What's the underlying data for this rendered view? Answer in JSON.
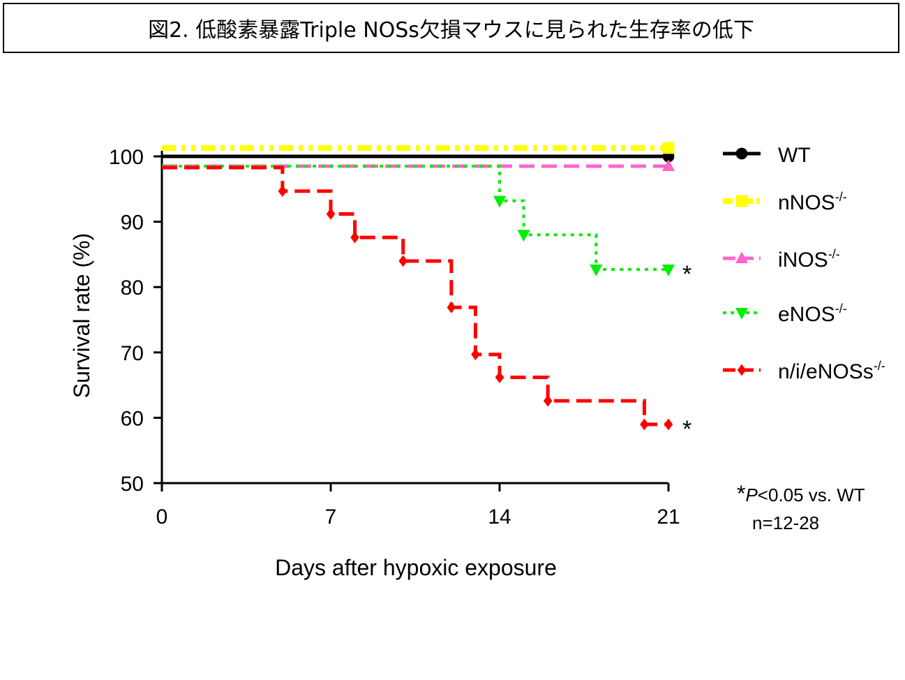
{
  "title": "図2. 低酸素暴露Triple NOSs欠損マウスに見られた生存率の低下",
  "chart_data": {
    "type": "line",
    "xlabel": "Days after hypoxic exposure",
    "ylabel": "Survival rate (%)",
    "xlim": [
      0,
      21
    ],
    "ylim": [
      50,
      100
    ],
    "xticks": [
      0,
      7,
      14,
      21
    ],
    "yticks": [
      50,
      60,
      70,
      80,
      90,
      100
    ],
    "legend_position": "right",
    "series": [
      {
        "name": "WT",
        "sup": "",
        "color": "#000000",
        "dash": "solid",
        "marker": "circle",
        "points": [
          [
            0,
            100
          ],
          [
            21,
            100
          ]
        ]
      },
      {
        "name": "nNOS",
        "sup": "-/-",
        "color": "#ffff00",
        "dash": "dashdotdot",
        "marker": "square",
        "points": [
          [
            0,
            100
          ],
          [
            21,
            100
          ]
        ]
      },
      {
        "name": "iNOS",
        "sup": "-/-",
        "color": "#ff66cc",
        "dash": "dash",
        "marker": "triangle-up",
        "points": [
          [
            0,
            100
          ],
          [
            21,
            100
          ]
        ]
      },
      {
        "name": "eNOS",
        "sup": "-/-",
        "color": "#00ee00",
        "dash": "dot",
        "marker": "triangle-down",
        "points": [
          [
            0,
            100
          ],
          [
            14,
            94.7
          ],
          [
            15,
            89.5
          ],
          [
            18,
            84.2
          ],
          [
            21,
            84.2
          ]
        ]
      },
      {
        "name": "n/i/eNOSs",
        "sup": "-/-",
        "color": "#ff0000",
        "dash": "dash",
        "marker": "diamond",
        "points": [
          [
            0,
            100
          ],
          [
            5,
            96.4
          ],
          [
            7,
            92.9
          ],
          [
            8,
            89.3
          ],
          [
            10,
            85.7
          ],
          [
            12,
            78.6
          ],
          [
            13,
            71.4
          ],
          [
            14,
            67.9
          ],
          [
            16,
            64.3
          ],
          [
            20,
            60.7
          ],
          [
            21,
            60.7
          ]
        ]
      }
    ],
    "annotations": {
      "star": "*",
      "pvalue_prefix": "*",
      "pvalue_italic": "P",
      "pvalue_rest": "<0.05 vs. WT",
      "n_text": "n=12-28"
    }
  }
}
